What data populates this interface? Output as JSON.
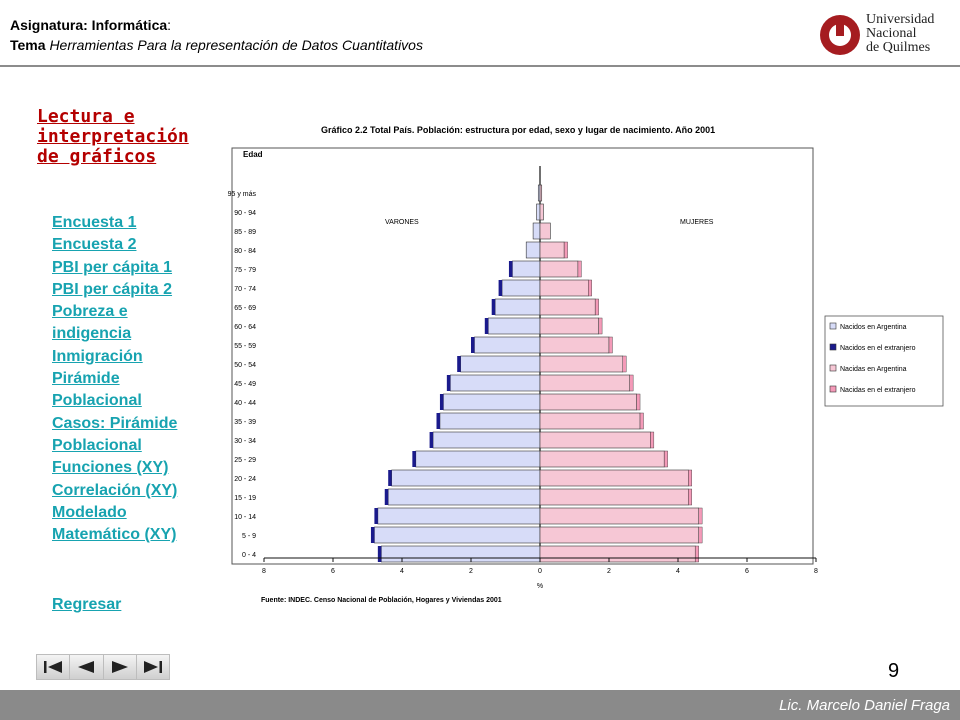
{
  "header": {
    "subject_label": "Asignatura: Informática",
    "subject_suffix": ":",
    "topic_label": "Tema",
    "topic_value": "Herramientas Para la representación de Datos Cuantitativos"
  },
  "logo": {
    "line1": "Universidad",
    "line2": "Nacional",
    "line3": "de Quilmes",
    "color": "#a51c20"
  },
  "sidebar": {
    "title": "Lectura e interpretación de gráficos",
    "links": [
      "Encuesta 1",
      "Encuesta 2",
      "PBI per cápita 1",
      "PBI per cápita 2",
      "Pobreza e",
      "indigencia",
      "Inmigración",
      "Pirámide",
      "Poblacional",
      "Casos: Pirámide",
      "Poblacional",
      "Funciones (XY)",
      "Correlación (XY)",
      "Modelado",
      "Matemático (XY)"
    ],
    "back": "Regresar"
  },
  "chart_data": {
    "type": "bar",
    "title": "Gráfico 2.2 Total País. Población: estructura por edad, sexo y lugar de nacimiento. Año 2001",
    "ylabel": "Edad",
    "xlabel": "%",
    "source": "Fuente: INDEC. Censo Nacional de Población, Hogares y Viviendas 2001",
    "left_label": "VARONES",
    "right_label": "MUJERES",
    "xlim": [
      -8,
      8
    ],
    "x_ticks": [
      "8",
      "6",
      "4",
      "2",
      "0",
      "2",
      "4",
      "6",
      "8"
    ],
    "categories": [
      "0 - 4",
      "5 - 9",
      "10 - 14",
      "15 - 19",
      "20 - 24",
      "25 - 29",
      "30 - 34",
      "35 - 39",
      "40 - 44",
      "45 - 49",
      "50 - 54",
      "55 - 59",
      "60 - 64",
      "65 - 69",
      "70 - 74",
      "75 - 79",
      "80 - 84",
      "85 - 89",
      "90 - 94",
      "95 y más"
    ],
    "series": [
      {
        "name": "Nacidos en Argentina",
        "values": [
          4.6,
          4.8,
          4.7,
          4.4,
          4.3,
          3.6,
          3.1,
          2.9,
          2.8,
          2.6,
          2.3,
          1.9,
          1.5,
          1.3,
          1.1,
          0.8,
          0.4,
          0.2,
          0.1,
          0.05
        ]
      },
      {
        "name": "Nacidos en el extranjero",
        "values": [
          0.1,
          0.1,
          0.1,
          0.1,
          0.1,
          0.1,
          0.1,
          0.1,
          0.1,
          0.1,
          0.1,
          0.1,
          0.1,
          0.1,
          0.1,
          0.1,
          0.0,
          0.0,
          0.0,
          0.0
        ]
      },
      {
        "name": "Nacidas en Argentina",
        "values": [
          4.5,
          4.6,
          4.6,
          4.3,
          4.3,
          3.6,
          3.2,
          2.9,
          2.8,
          2.6,
          2.4,
          2.0,
          1.7,
          1.6,
          1.4,
          1.1,
          0.7,
          0.3,
          0.1,
          0.05
        ]
      },
      {
        "name": "Nacidas en el extranjero",
        "values": [
          0.1,
          0.1,
          0.1,
          0.1,
          0.1,
          0.1,
          0.1,
          0.1,
          0.1,
          0.1,
          0.1,
          0.1,
          0.1,
          0.1,
          0.1,
          0.1,
          0.1,
          0.0,
          0.0,
          0.0
        ]
      }
    ],
    "colors": {
      "male_ar": "#d7dcf8",
      "male_ext": "#1a1a8c",
      "female_ar": "#f6c7d5",
      "female_ext": "#f49ab8"
    },
    "legend_position": "right"
  },
  "page": {
    "number": "9"
  },
  "footer": {
    "author": "Lic. Marcelo Daniel Fraga"
  }
}
